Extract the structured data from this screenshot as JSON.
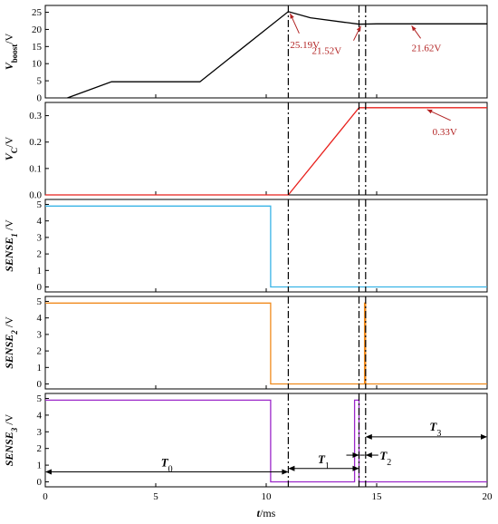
{
  "chart_data": {
    "type": "line",
    "xlabel": "t/ms",
    "xlim": [
      0,
      20
    ],
    "xticks": [
      "0",
      "5",
      "10",
      "15",
      "20"
    ],
    "vlines_dashdot": [
      11.0,
      14.2,
      14.5
    ],
    "panels": [
      {
        "ylabel_main": "V",
        "ylabel_sub": "boost",
        "ylabel_unit": "/V",
        "ylim": [
          0,
          27
        ],
        "yticks": [
          0,
          5,
          10,
          15,
          20,
          25
        ],
        "series": [
          {
            "color": "#000000",
            "x": [
              1,
              3,
              7,
              11,
              12,
              14.2,
              15,
              20
            ],
            "y": [
              0,
              4.7,
              4.7,
              25.19,
              23.4,
              21.52,
              21.62,
              21.62
            ]
          }
        ],
        "annotations": [
          {
            "text": "25.19V",
            "x": 11.0,
            "y": 25.19
          },
          {
            "text": "21.52V",
            "x": 14.2,
            "y": 21.52
          },
          {
            "text": "21.62V",
            "x": 16.5,
            "y": 21.62
          }
        ]
      },
      {
        "ylabel_main": "V",
        "ylabel_sub": "C",
        "ylabel_unit": "/V",
        "ylim": [
          0,
          0.35
        ],
        "yticks": [
          0.0,
          0.1,
          0.2,
          0.3
        ],
        "ytick_labels": [
          "0.0",
          "0.1",
          "0.2",
          "0.3"
        ],
        "series": [
          {
            "color": "#e8201c",
            "x": [
              0,
              11,
              14.2,
              20
            ],
            "y": [
              0,
              0,
              0.33,
              0.33
            ]
          }
        ],
        "annotations": [
          {
            "text": "0.33V",
            "x": 17.2,
            "y": 0.33
          }
        ]
      },
      {
        "ylabel_main": "SENSE",
        "ylabel_sub": "1",
        "ylabel_unit": " /V",
        "ylim": [
          -0.3,
          5.3
        ],
        "yticks": [
          0,
          1,
          2,
          3,
          4,
          5
        ],
        "series": [
          {
            "color": "#39b4e6",
            "x": [
              0,
              10.2,
              10.2,
              20
            ],
            "y": [
              4.9,
              4.9,
              0,
              0
            ]
          }
        ]
      },
      {
        "ylabel_main": "SENSE",
        "ylabel_sub": "2",
        "ylabel_unit": " /V",
        "ylim": [
          -0.3,
          5.3
        ],
        "yticks": [
          0,
          1,
          2,
          3,
          4,
          5
        ],
        "series": [
          {
            "color": "#f08a1c",
            "x": [
              0,
              10.2,
              10.2,
              14.45,
              14.45,
              14.5,
              14.5,
              20
            ],
            "y": [
              4.9,
              4.9,
              0,
              0,
              4.9,
              4.9,
              0,
              0
            ]
          }
        ]
      },
      {
        "ylabel_main": "SENSE",
        "ylabel_sub": "3",
        "ylabel_unit": " /V",
        "ylim": [
          -0.3,
          5.3
        ],
        "yticks": [
          0,
          1,
          2,
          3,
          4,
          5
        ],
        "series": [
          {
            "color": "#9b27c9",
            "x": [
              0,
              10.2,
              10.2,
              14.0,
              14.0,
              14.2,
              14.2,
              20
            ],
            "y": [
              4.9,
              4.9,
              0,
              0,
              4.9,
              4.9,
              0,
              0
            ]
          }
        ],
        "spans": [
          {
            "label": "T",
            "sub": "0",
            "from": 0,
            "to": 11.0,
            "y": 0.6
          },
          {
            "label": "T",
            "sub": "1",
            "from": 11.0,
            "to": 14.2,
            "y": 0.8
          },
          {
            "label": "T",
            "sub": "2",
            "from": 14.2,
            "to": 14.5,
            "y": 1.6
          },
          {
            "label": "T",
            "sub": "3",
            "from": 14.5,
            "to": 20,
            "y": 2.7
          }
        ]
      }
    ]
  }
}
